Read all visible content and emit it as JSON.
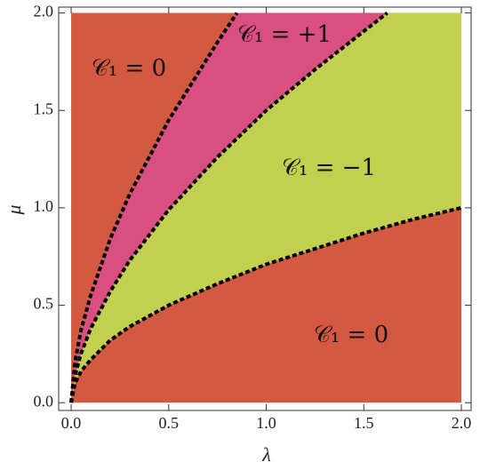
{
  "chart_data": {
    "type": "phase",
    "xlabel": "λ",
    "ylabel": "μ",
    "xlim": [
      -0.064,
      2.05
    ],
    "ylim": [
      -0.04,
      2.03
    ],
    "xticks": [
      {
        "value": 0,
        "label": "0.0"
      },
      0.5,
      {
        "value": 1,
        "label": "1.0"
      },
      1.5,
      {
        "value": 2,
        "label": "2.0"
      }
    ],
    "yticks": [
      {
        "value": 0,
        "label": "0.0"
      },
      0.5,
      {
        "value": 1,
        "label": "1.0"
      },
      1.5,
      {
        "value": 2,
        "label": "2.0"
      }
    ],
    "region_colors": [
      "#d35a40",
      "#c1d14f",
      "#d94f80"
    ],
    "boundary_color": "#000000",
    "boundaries": [
      {
        "x": [
          0,
          0.02,
          0.05,
          0.1,
          0.2,
          0.3,
          0.5,
          0.75,
          1,
          1.25,
          1.5,
          1.75,
          2
        ],
        "values": [
          0,
          0.1,
          0.16,
          0.22,
          0.32,
          0.39,
          0.5,
          0.61,
          0.71,
          0.79,
          0.87,
          0.94,
          1.0
        ]
      },
      {
        "x": [
          0,
          0.02,
          0.05,
          0.1,
          0.2,
          0.3,
          0.5,
          0.75,
          1,
          1.25,
          1.62
        ],
        "values": [
          0,
          0.14,
          0.25,
          0.38,
          0.57,
          0.73,
          0.99,
          1.26,
          1.5,
          1.71,
          2.0
        ]
      },
      {
        "x": [
          0,
          0.02,
          0.05,
          0.1,
          0.2,
          0.3,
          0.5,
          0.75,
          0.85
        ],
        "values": [
          0,
          0.21,
          0.37,
          0.55,
          0.84,
          1.07,
          1.45,
          1.85,
          2.0
        ]
      }
    ],
    "annotations": [
      "𝒞₁ = 0",
      "𝒞₁ = +1",
      "𝒞₁ = −1",
      "𝒞₁ = 0"
    ]
  }
}
